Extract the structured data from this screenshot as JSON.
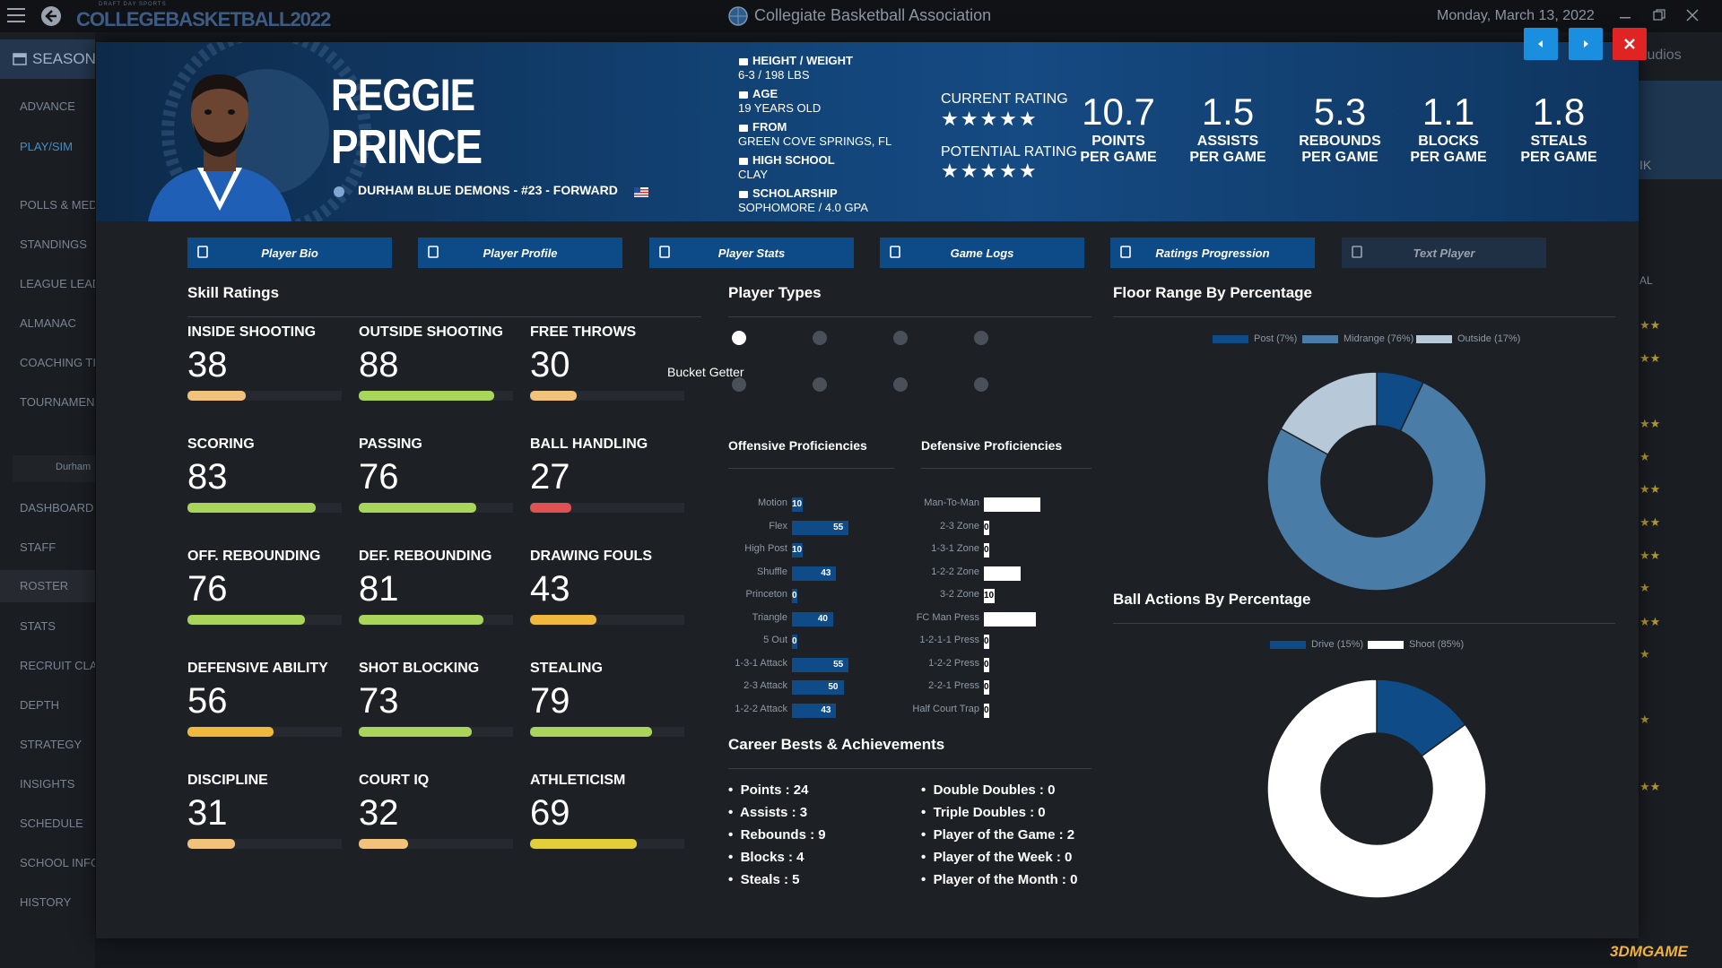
{
  "topbar": {
    "app_logo": "COLLEGEBASKETBALL2022",
    "app_logo_small": "DRAFT DAY SPORTS",
    "title": "Collegiate Basketball Association",
    "date": "Monday, March 13, 2022",
    "right_fragment": "tudios"
  },
  "sidebar": {
    "season": "SEASON",
    "items": [
      "ADVANCE",
      "PLAY/SIM",
      "POLLS & MED",
      "STANDINGS",
      "LEAGUE LEAD",
      "ALMANAC",
      "COACHING TI",
      "TOURNAMEN",
      "DASHBOARD",
      "STAFF",
      "ROSTER",
      "STATS",
      "RECRUIT CLA",
      "DEPTH",
      "STRATEGY",
      "INSIGHTS",
      "SCHEDULE",
      "SCHOOL INFO",
      "HISTORY"
    ],
    "team": "Durham"
  },
  "right_bg": {
    "ik": "IK",
    "al": "AL"
  },
  "player": {
    "first_name": "REGGIE",
    "last_name": "PRINCE",
    "team_line": "DURHAM BLUE DEMONS - #23 - FORWARD",
    "bio": [
      {
        "label": "HEIGHT / WEIGHT",
        "value": "6-3 / 198 LBS"
      },
      {
        "label": "AGE",
        "value": "19 YEARS OLD"
      },
      {
        "label": "FROM",
        "value": "GREEN COVE SPRINGS, FL"
      },
      {
        "label": "HIGH SCHOOL",
        "value": "CLAY"
      },
      {
        "label": "SCHOLARSHIP",
        "value": "SOPHOMORE / 4.0 GPA"
      }
    ],
    "current_rating_label": "CURRENT RATING",
    "potential_rating_label": "POTENTIAL RATING",
    "current_stars": 5,
    "potential_stars": 5,
    "stats": [
      {
        "value": "10.7",
        "l1": "POINTS",
        "l2": "PER GAME"
      },
      {
        "value": "1.5",
        "l1": "ASSISTS",
        "l2": "PER GAME"
      },
      {
        "value": "5.3",
        "l1": "REBOUNDS",
        "l2": "PER GAME"
      },
      {
        "value": "1.1",
        "l1": "BLOCKS",
        "l2": "PER GAME"
      },
      {
        "value": "1.8",
        "l1": "STEALS",
        "l2": "PER GAME"
      }
    ]
  },
  "tabs": [
    "Player Bio",
    "Player Profile",
    "Player Stats",
    "Game Logs",
    "Ratings Progression",
    "Text Player"
  ],
  "skills_title": "Skill Ratings",
  "skills": [
    {
      "name": "INSIDE SHOOTING",
      "value": "38",
      "pct": 38,
      "color": "#f0c27b"
    },
    {
      "name": "OUTSIDE SHOOTING",
      "value": "88",
      "pct": 88,
      "color": "#a9d65a"
    },
    {
      "name": "FREE THROWS",
      "value": "30",
      "pct": 30,
      "color": "#f0c27b"
    },
    {
      "name": "SCORING",
      "value": "83",
      "pct": 83,
      "color": "#a9d65a"
    },
    {
      "name": "PASSING",
      "value": "76",
      "pct": 76,
      "color": "#a9d65a"
    },
    {
      "name": "BALL HANDLING",
      "value": "27",
      "pct": 27,
      "color": "#e05252"
    },
    {
      "name": "OFF. REBOUNDING",
      "value": "76",
      "pct": 76,
      "color": "#a9d65a"
    },
    {
      "name": "DEF. REBOUNDING",
      "value": "81",
      "pct": 81,
      "color": "#a9d65a"
    },
    {
      "name": "DRAWING FOULS",
      "value": "43",
      "pct": 43,
      "color": "#f0b93e"
    },
    {
      "name": "DEFENSIVE ABILITY",
      "value": "56",
      "pct": 56,
      "color": "#f0b93e"
    },
    {
      "name": "SHOT BLOCKING",
      "value": "73",
      "pct": 73,
      "color": "#a9d65a"
    },
    {
      "name": "STEALING",
      "value": "79",
      "pct": 79,
      "color": "#a9d65a"
    },
    {
      "name": "DISCIPLINE",
      "value": "31",
      "pct": 31,
      "color": "#f0c27b"
    },
    {
      "name": "COURT IQ",
      "value": "32",
      "pct": 32,
      "color": "#f0c27b"
    },
    {
      "name": "ATHLETICISM",
      "value": "69",
      "pct": 69,
      "color": "#e3cf3a"
    }
  ],
  "player_types_title": "Player Types",
  "player_type_active": "Bucket Getter",
  "off_title": "Offensive Proficiencies",
  "def_title": "Defensive Proficiencies",
  "offensive": [
    {
      "name": "Motion",
      "value": 10
    },
    {
      "name": "Flex",
      "value": 55
    },
    {
      "name": "High Post",
      "value": 10
    },
    {
      "name": "Shuffle",
      "value": 43
    },
    {
      "name": "Princeton",
      "value": 0
    },
    {
      "name": "Triangle",
      "value": 40
    },
    {
      "name": "5 Out",
      "value": 0
    },
    {
      "name": "1-3-1 Attack",
      "value": 55
    },
    {
      "name": "2-3 Attack",
      "value": 50
    },
    {
      "name": "1-2-2 Attack",
      "value": 43
    }
  ],
  "defensive": [
    {
      "name": "Man-To-Man",
      "value": 55
    },
    {
      "name": "2-3 Zone",
      "value": 0
    },
    {
      "name": "1-3-1 Zone",
      "value": 0
    },
    {
      "name": "1-2-2 Zone",
      "value": 36
    },
    {
      "name": "3-2 Zone",
      "value": 10
    },
    {
      "name": "FC Man Press",
      "value": 50
    },
    {
      "name": "1-2-1-1 Press",
      "value": 0
    },
    {
      "name": "1-2-2 Press",
      "value": 0
    },
    {
      "name": "2-2-1 Press",
      "value": 0
    },
    {
      "name": "Half Court Trap",
      "value": 0
    }
  ],
  "career_title": "Career Bests & Achievements",
  "career_left": [
    "Points : 24",
    "Assists : 3",
    "Rebounds : 9",
    "Blocks : 4",
    "Steals : 5"
  ],
  "career_right": [
    "Double Doubles : 0",
    "Triple Doubles : 0",
    "Player of the Game : 2",
    "Player of the Week : 0",
    "Player of the Month : 0"
  ],
  "floor_title": "Floor Range By Percentage",
  "ball_title": "Ball Actions By Percentage",
  "chart_data": [
    {
      "type": "pie",
      "title": "Floor Range By Percentage",
      "legend_labels": [
        "Post (7%)",
        "Midrange (76%)",
        "Outside (17%)"
      ],
      "categories": [
        "Post",
        "Midrange",
        "Outside"
      ],
      "values": [
        7,
        76,
        17
      ],
      "colors": [
        "#0f4c87",
        "#4a7ca8",
        "#b7c9d9"
      ],
      "legend": "top"
    },
    {
      "type": "pie",
      "title": "Ball Actions By Percentage",
      "legend_labels": [
        "Drive (15%)",
        "Shoot (85%)"
      ],
      "categories": [
        "Drive",
        "Shoot"
      ],
      "values": [
        15,
        85
      ],
      "colors": [
        "#0f4c87",
        "#ffffff"
      ],
      "legend": "top"
    }
  ],
  "watermark": "3DMGAME"
}
